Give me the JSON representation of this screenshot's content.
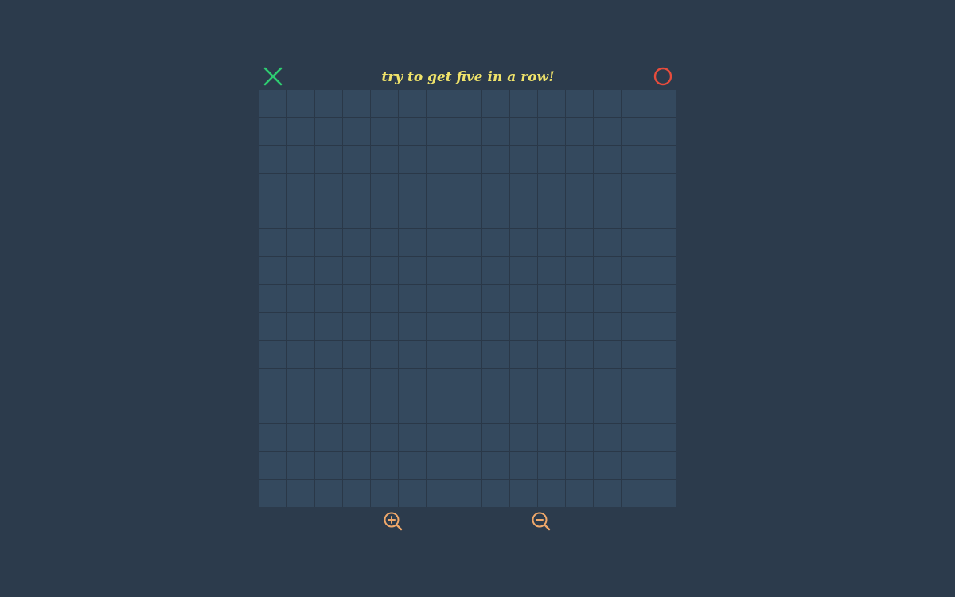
{
  "status": {
    "message": "try to get five in a row!"
  },
  "players": {
    "x": {
      "icon": "x-mark-icon",
      "color": "#2ecc71"
    },
    "o": {
      "icon": "o-mark-icon",
      "color": "#e74c3c"
    }
  },
  "board": {
    "rows": 15,
    "cols": 15
  },
  "controls": {
    "zoom_in_icon": "zoom-in-icon",
    "zoom_out_icon": "zoom-out-icon",
    "color": "#f0a86a"
  },
  "colors": {
    "background": "#2c3b4c",
    "cell": "#34495e",
    "status_text": "#f0e36a"
  }
}
